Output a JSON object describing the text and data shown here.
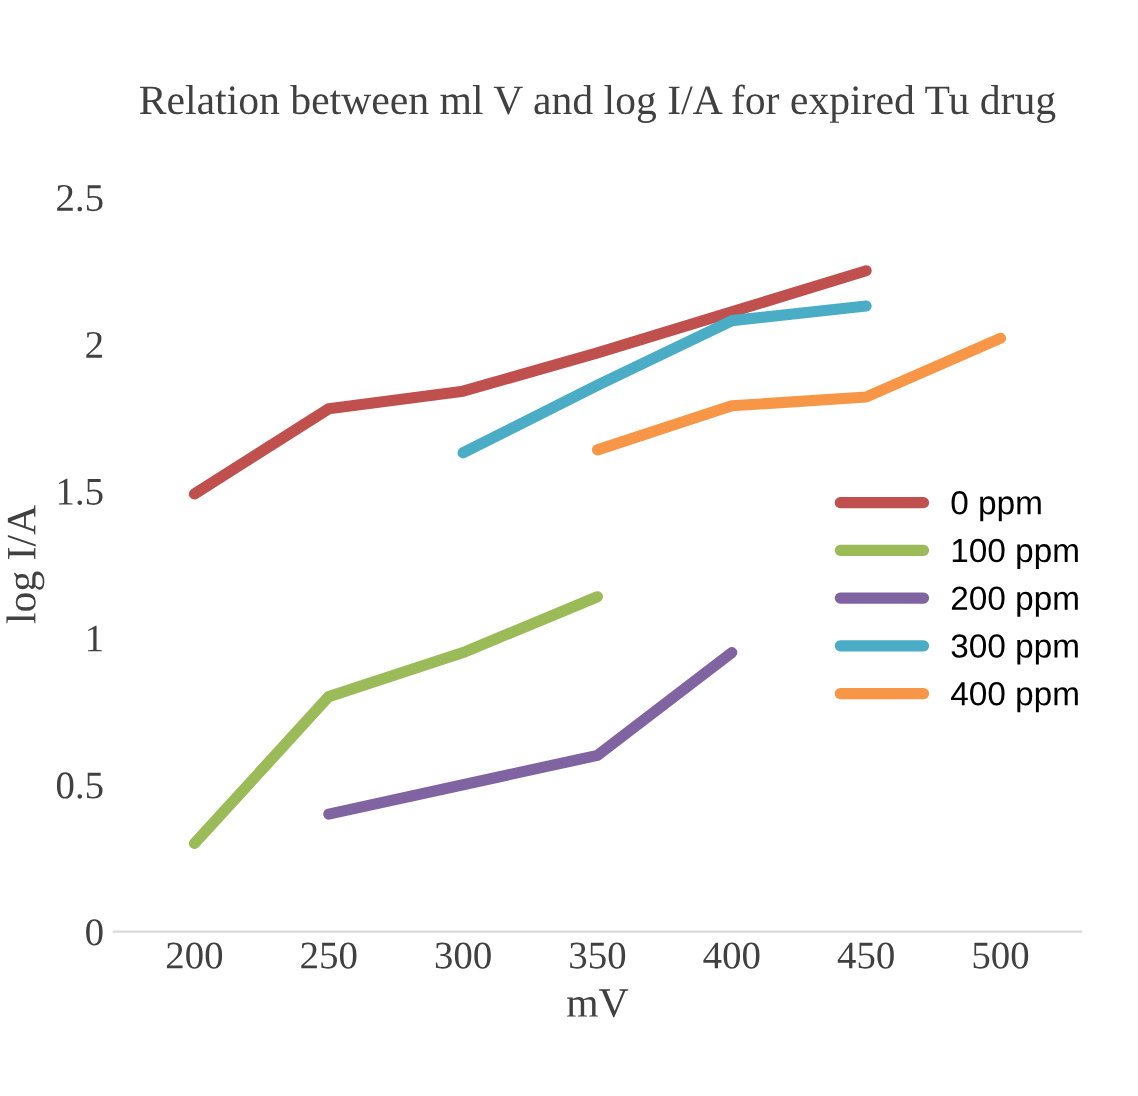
{
  "chart_data": {
    "type": "line",
    "title": "Relation between ml V and log I/A for expired Tu drug",
    "xlabel": "mV",
    "ylabel": "log I/A",
    "categories": [
      "200",
      "250",
      "300",
      "350",
      "400",
      "450",
      "500"
    ],
    "series": [
      {
        "name": "0 ppm",
        "color": "#c0504d",
        "values": [
          1.49,
          1.78,
          1.84,
          1.97,
          2.11,
          2.25,
          null
        ]
      },
      {
        "name": "100 ppm",
        "color": "#9bbb59",
        "values": [
          0.3,
          0.8,
          0.95,
          1.14,
          null,
          null,
          null
        ]
      },
      {
        "name": "200 ppm",
        "color": "#8064a2",
        "values": [
          null,
          0.4,
          0.5,
          0.6,
          0.95,
          null,
          null
        ]
      },
      {
        "name": "300 ppm",
        "color": "#4bacc6",
        "values": [
          null,
          null,
          1.63,
          1.86,
          2.08,
          2.13,
          null
        ]
      },
      {
        "name": "400 ppm",
        "color": "#f79646",
        "values": [
          null,
          null,
          null,
          1.64,
          1.79,
          1.82,
          2.02
        ]
      }
    ],
    "ylim": [
      0,
      2.5
    ],
    "yticks": [
      0,
      0.5,
      1,
      1.5,
      2,
      2.5
    ],
    "grid": false,
    "legend": "right",
    "marker": "none",
    "line_style": "solid"
  }
}
